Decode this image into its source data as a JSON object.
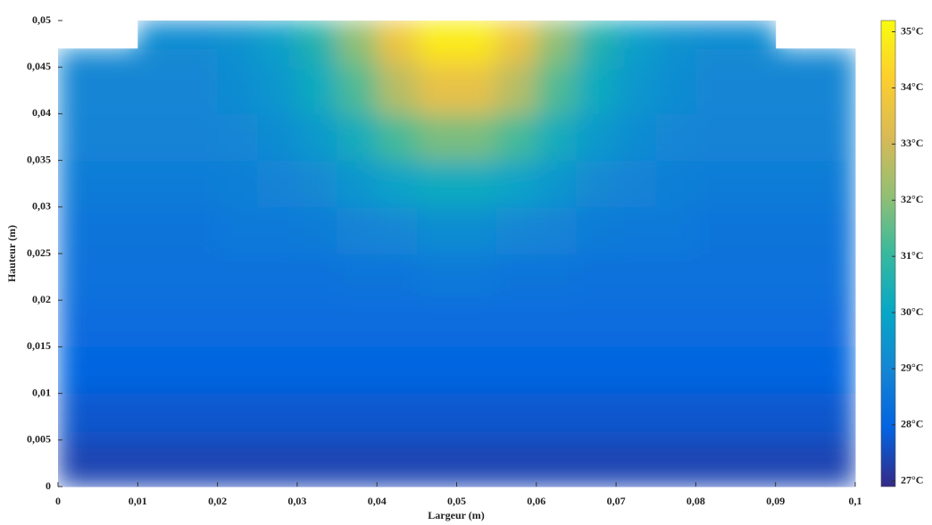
{
  "chart_data": {
    "type": "heatmap",
    "xlabel": "Largeur (m)",
    "ylabel": "Hauteur (m)",
    "xlim": [
      0,
      0.1
    ],
    "ylim": [
      0,
      0.05
    ],
    "xticks": [
      0,
      {
        "value": 0.01,
        "label": "0,01"
      },
      {
        "value": 0.02,
        "label": "0,02"
      },
      {
        "value": 0.03,
        "label": "0,03"
      },
      {
        "value": 0.04,
        "label": "0,04"
      },
      {
        "value": 0.05,
        "label": "0,05"
      },
      {
        "value": 0.06,
        "label": "0,06"
      },
      {
        "value": 0.07,
        "label": "0,07"
      },
      {
        "value": 0.08,
        "label": "0,08"
      },
      {
        "value": 0.09,
        "label": "0,09"
      },
      {
        "value": 0.1,
        "label": "0,1"
      }
    ],
    "yticks": [
      0,
      {
        "value": 0.005,
        "label": "0,005"
      },
      {
        "value": 0.01,
        "label": "0,01"
      },
      {
        "value": 0.015,
        "label": "0,015"
      },
      {
        "value": 0.02,
        "label": "0,02"
      },
      {
        "value": 0.025,
        "label": "0,025"
      },
      {
        "value": 0.03,
        "label": "0,03"
      },
      {
        "value": 0.035,
        "label": "0,035"
      },
      {
        "value": 0.04,
        "label": "0,04"
      },
      {
        "value": 0.045,
        "label": "0,045"
      },
      {
        "value": 0.05,
        "label": "0,05"
      }
    ],
    "clim": [
      26.9,
      35.2
    ],
    "cticks": [
      {
        "value": 27,
        "label": "27°C"
      },
      {
        "value": 28,
        "label": "28°C"
      },
      {
        "value": 29,
        "label": "29°C"
      },
      {
        "value": 30,
        "label": "30°C"
      },
      {
        "value": 31,
        "label": "31°C"
      },
      {
        "value": 32,
        "label": "32°C"
      },
      {
        "value": 33,
        "label": "33°C"
      },
      {
        "value": 34,
        "label": "34°C"
      },
      {
        "value": 35,
        "label": "35°C"
      }
    ],
    "colormap": [
      "#352a87",
      "#0363e1",
      "#1485d4",
      "#06a7c6",
      "#38b99e",
      "#92bf73",
      "#d9ba56",
      "#fcce2e",
      "#f9fb0e"
    ],
    "x_edges": [
      0,
      0.005,
      0.01,
      0.015,
      0.02,
      0.025,
      0.03,
      0.035,
      0.04,
      0.045,
      0.05,
      0.055,
      0.06,
      0.065,
      0.07,
      0.075,
      0.08,
      0.085,
      0.09,
      0.095,
      0.1
    ],
    "y_edges": [
      0,
      0.005,
      0.01,
      0.015,
      0.02,
      0.025,
      0.03,
      0.035,
      0.04,
      0.045,
      0.047,
      0.05
    ],
    "z": [
      [
        27.4,
        27.4,
        27.4,
        27.4,
        27.4,
        27.4,
        27.4,
        27.4,
        27.4,
        27.4,
        27.4,
        27.4,
        27.4,
        27.4,
        27.4,
        27.4,
        27.4,
        27.4,
        27.4,
        27.4
      ],
      [
        27.7,
        27.7,
        27.7,
        27.7,
        27.7,
        27.7,
        27.7,
        27.7,
        27.7,
        27.7,
        27.7,
        27.7,
        27.7,
        27.7,
        27.7,
        27.7,
        27.7,
        27.7,
        27.7,
        27.7
      ],
      [
        28.0,
        28.0,
        28.0,
        28.0,
        28.0,
        28.0,
        28.0,
        28.0,
        28.0,
        28.0,
        28.0,
        28.0,
        28.0,
        28.0,
        28.0,
        28.0,
        28.0,
        28.0,
        28.0,
        28.0
      ],
      [
        28.2,
        28.2,
        28.2,
        28.2,
        28.2,
        28.2,
        28.2,
        28.2,
        28.2,
        28.2,
        28.2,
        28.2,
        28.2,
        28.2,
        28.2,
        28.2,
        28.2,
        28.2,
        28.2,
        28.2
      ],
      [
        28.4,
        28.4,
        28.4,
        28.4,
        28.4,
        28.4,
        28.4,
        28.5,
        28.5,
        28.6,
        28.6,
        28.5,
        28.5,
        28.4,
        28.4,
        28.4,
        28.4,
        28.4,
        28.4,
        28.4
      ],
      [
        28.5,
        28.5,
        28.5,
        28.5,
        28.6,
        28.6,
        28.7,
        28.9,
        29.0,
        29.2,
        29.2,
        29.0,
        28.9,
        28.7,
        28.6,
        28.6,
        28.5,
        28.5,
        28.5,
        28.5
      ],
      [
        28.7,
        28.7,
        28.7,
        28.7,
        28.8,
        28.9,
        29.1,
        29.5,
        29.9,
        30.2,
        30.2,
        29.9,
        29.5,
        29.1,
        28.9,
        28.8,
        28.7,
        28.7,
        28.7,
        28.7
      ],
      [
        28.9,
        28.9,
        28.9,
        28.9,
        29.0,
        29.2,
        29.6,
        30.3,
        31.2,
        31.8,
        31.8,
        31.2,
        30.3,
        29.6,
        29.2,
        29.0,
        28.9,
        28.9,
        28.9,
        28.9
      ],
      [
        29.0,
        29.0,
        29.0,
        29.0,
        29.2,
        29.5,
        30.2,
        31.3,
        32.6,
        33.5,
        33.5,
        32.6,
        31.3,
        30.2,
        29.5,
        29.2,
        29.0,
        29.0,
        29.0,
        29.0
      ],
      [
        29.1,
        29.1,
        29.1,
        29.1,
        29.3,
        29.7,
        30.5,
        31.9,
        33.4,
        34.5,
        34.5,
        33.4,
        31.9,
        30.5,
        29.7,
        29.3,
        29.1,
        29.1,
        29.1,
        29.1
      ],
      [
        null,
        null,
        29.2,
        29.2,
        29.4,
        29.8,
        30.7,
        32.1,
        33.8,
        34.9,
        34.9,
        33.8,
        32.1,
        30.7,
        29.8,
        29.4,
        29.2,
        29.2,
        null,
        null
      ]
    ]
  }
}
